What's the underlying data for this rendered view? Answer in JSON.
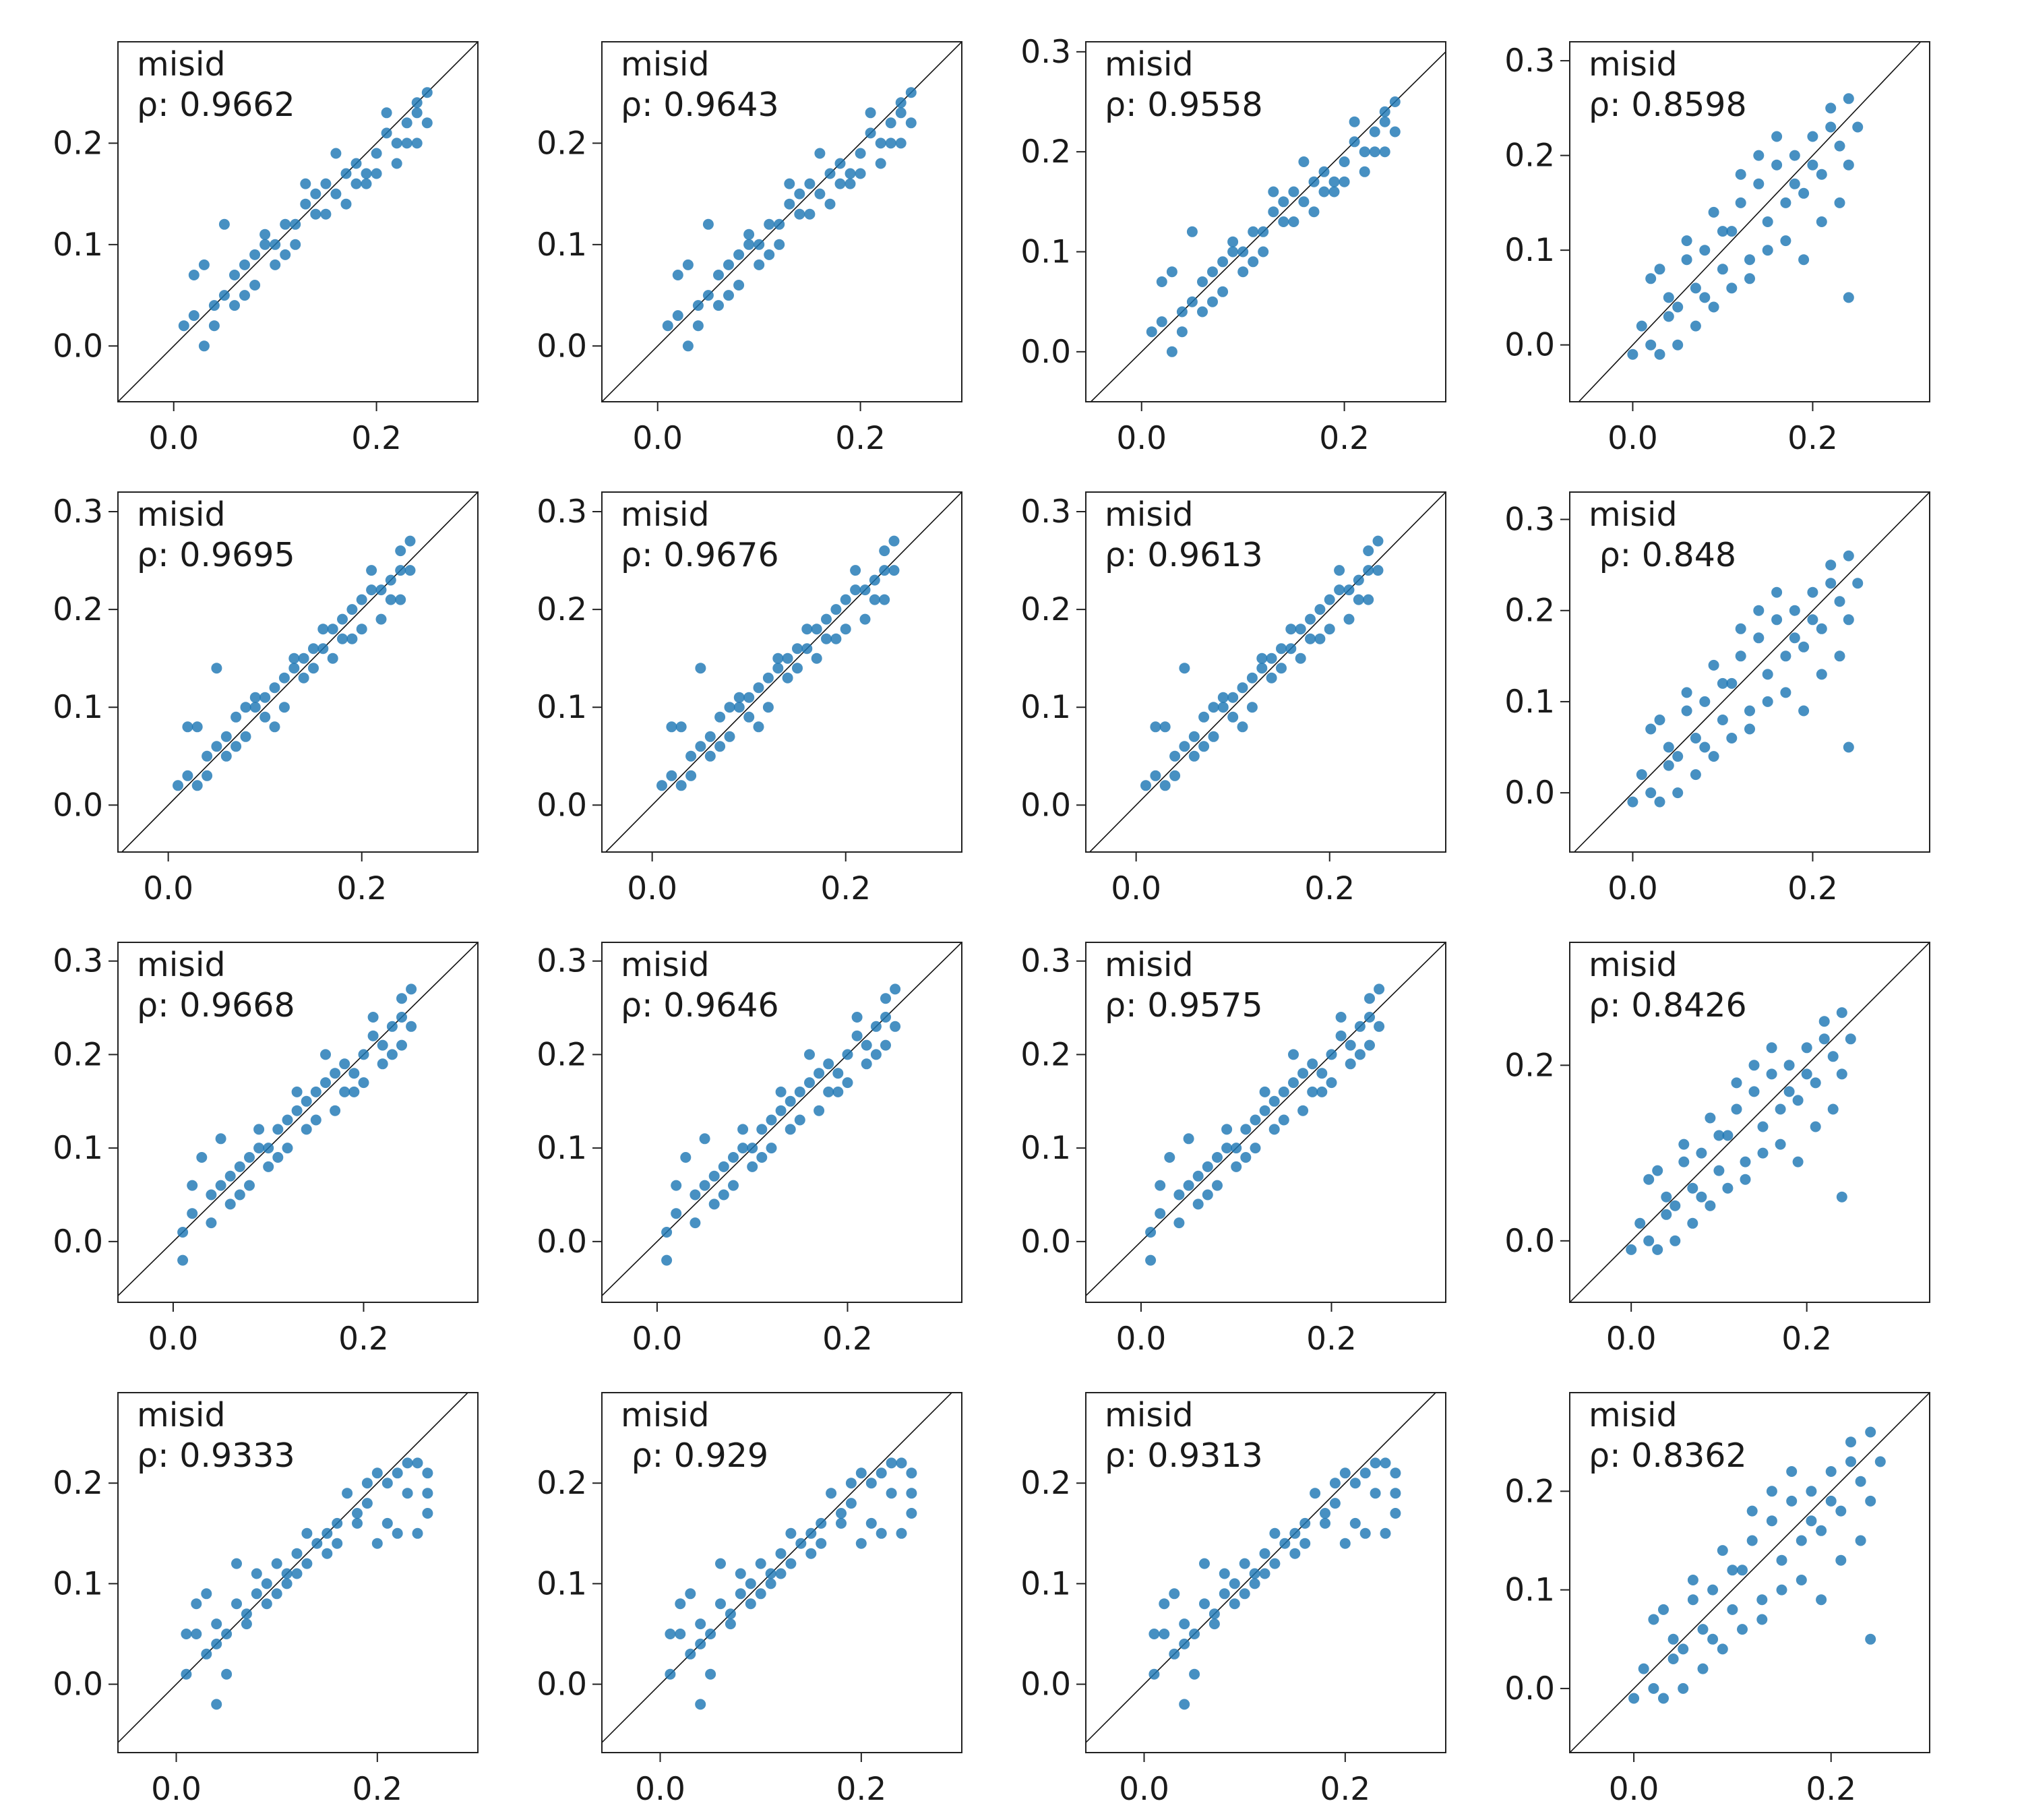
{
  "colors": {
    "point": "#1f77b4",
    "axes": "#222222",
    "background": "#ffffff"
  },
  "chart_data": [
    {
      "type": "scatter",
      "row": 0,
      "col": 0,
      "label": "misid",
      "rho": "ρ: 0.9662",
      "xlim": [
        -0.055,
        0.3
      ],
      "ylim": [
        -0.055,
        0.3
      ],
      "xticks": [
        "0.0",
        "0.2"
      ],
      "yticks": [
        "0.0",
        "0.1",
        "0.2"
      ]
    },
    {
      "type": "scatter",
      "row": 0,
      "col": 1,
      "label": "misid",
      "rho": "ρ: 0.9643",
      "xlim": [
        -0.055,
        0.3
      ],
      "ylim": [
        -0.055,
        0.3
      ],
      "xticks": [
        "0.0",
        "0.2"
      ],
      "yticks": [
        "0.0",
        "0.1",
        "0.2"
      ]
    },
    {
      "type": "scatter",
      "row": 0,
      "col": 2,
      "label": "misid",
      "rho": "ρ: 0.9558",
      "xlim": [
        -0.055,
        0.3
      ],
      "ylim": [
        -0.05,
        0.31
      ],
      "xticks": [
        "0.0",
        "0.2"
      ],
      "yticks": [
        "0.0",
        "0.1",
        "0.2",
        "0.3"
      ]
    },
    {
      "type": "scatter",
      "row": 0,
      "col": 3,
      "label": "misid",
      "rho": "ρ: 0.8598",
      "xlim": [
        -0.07,
        0.33
      ],
      "ylim": [
        -0.06,
        0.32
      ],
      "xticks": [
        "0.0",
        "0.2"
      ],
      "yticks": [
        "0.0",
        "0.1",
        "0.2",
        "0.3"
      ]
    },
    {
      "type": "scatter",
      "row": 1,
      "col": 0,
      "label": "misid",
      "rho": "ρ: 0.9695",
      "xlim": [
        -0.052,
        0.32
      ],
      "ylim": [
        -0.048,
        0.32
      ],
      "xticks": [
        "0.0",
        "0.2"
      ],
      "yticks": [
        "0.0",
        "0.1",
        "0.2",
        "0.3"
      ]
    },
    {
      "type": "scatter",
      "row": 1,
      "col": 1,
      "label": "misid",
      "rho": "ρ: 0.9676",
      "xlim": [
        -0.052,
        0.32
      ],
      "ylim": [
        -0.048,
        0.32
      ],
      "xticks": [
        "0.0",
        "0.2"
      ],
      "yticks": [
        "0.0",
        "0.1",
        "0.2",
        "0.3"
      ]
    },
    {
      "type": "scatter",
      "row": 1,
      "col": 2,
      "label": "misid",
      "rho": "ρ: 0.9613",
      "xlim": [
        -0.052,
        0.32
      ],
      "ylim": [
        -0.048,
        0.32
      ],
      "xticks": [
        "0.0",
        "0.2"
      ],
      "yticks": [
        "0.0",
        "0.1",
        "0.2",
        "0.3"
      ]
    },
    {
      "type": "scatter",
      "row": 1,
      "col": 3,
      "label": "misid",
      "rho": " ρ: 0.848",
      "xlim": [
        -0.07,
        0.33
      ],
      "ylim": [
        -0.065,
        0.33
      ],
      "xticks": [
        "0.0",
        "0.2"
      ],
      "yticks": [
        "0.0",
        "0.1",
        "0.2",
        "0.3"
      ]
    },
    {
      "type": "scatter",
      "row": 2,
      "col": 0,
      "label": "misid",
      "rho": "ρ: 0.9668",
      "xlim": [
        -0.058,
        0.32
      ],
      "ylim": [
        -0.065,
        0.32
      ],
      "xticks": [
        "0.0",
        "0.2"
      ],
      "yticks": [
        "0.0",
        "0.1",
        "0.2",
        "0.3"
      ]
    },
    {
      "type": "scatter",
      "row": 2,
      "col": 1,
      "label": "misid",
      "rho": "ρ: 0.9646",
      "xlim": [
        -0.058,
        0.32
      ],
      "ylim": [
        -0.065,
        0.32
      ],
      "xticks": [
        "0.0",
        "0.2"
      ],
      "yticks": [
        "0.0",
        "0.1",
        "0.2",
        "0.3"
      ]
    },
    {
      "type": "scatter",
      "row": 2,
      "col": 2,
      "label": "misid",
      "rho": "ρ: 0.9575",
      "xlim": [
        -0.058,
        0.32
      ],
      "ylim": [
        -0.065,
        0.32
      ],
      "xticks": [
        "0.0",
        "0.2"
      ],
      "yticks": [
        "0.0",
        "0.1",
        "0.2",
        "0.3"
      ]
    },
    {
      "type": "scatter",
      "row": 2,
      "col": 3,
      "label": "misid",
      "rho": "ρ: 0.8426",
      "xlim": [
        -0.07,
        0.34
      ],
      "ylim": [
        -0.07,
        0.34
      ],
      "xticks": [
        "0.0",
        "0.2"
      ],
      "yticks": [
        "0.0",
        "0.2"
      ]
    },
    {
      "type": "scatter",
      "row": 3,
      "col": 0,
      "label": "misid",
      "rho": "ρ: 0.9333",
      "xlim": [
        -0.058,
        0.3
      ],
      "ylim": [
        -0.068,
        0.29
      ],
      "xticks": [
        "0.0",
        "0.2"
      ],
      "yticks": [
        "0.0",
        "0.1",
        "0.2"
      ]
    },
    {
      "type": "scatter",
      "row": 3,
      "col": 1,
      "label": "misid",
      "rho": " ρ: 0.929",
      "xlim": [
        -0.058,
        0.3
      ],
      "ylim": [
        -0.068,
        0.29
      ],
      "xticks": [
        "0.0",
        "0.2"
      ],
      "yticks": [
        "0.0",
        "0.1",
        "0.2"
      ]
    },
    {
      "type": "scatter",
      "row": 3,
      "col": 2,
      "label": "misid",
      "rho": "ρ: 0.9313",
      "xlim": [
        -0.058,
        0.3
      ],
      "ylim": [
        -0.068,
        0.29
      ],
      "xticks": [
        "0.0",
        "0.2"
      ],
      "yticks": [
        "0.0",
        "0.1",
        "0.2"
      ]
    },
    {
      "type": "scatter",
      "row": 3,
      "col": 3,
      "label": "misid",
      "rho": "ρ: 0.8362",
      "xlim": [
        -0.065,
        0.3
      ],
      "ylim": [
        -0.065,
        0.3
      ],
      "xticks": [
        "0.0",
        "0.2"
      ],
      "yticks": [
        "0.0",
        "0.1",
        "0.2"
      ]
    }
  ],
  "points": {
    "row0": [
      [
        0.01,
        0.02
      ],
      [
        0.02,
        0.03
      ],
      [
        0.02,
        0.07
      ],
      [
        0.03,
        0.08
      ],
      [
        0.04,
        0.04
      ],
      [
        0.05,
        0.05
      ],
      [
        0.05,
        0.12
      ],
      [
        0.06,
        0.07
      ],
      [
        0.07,
        0.08
      ],
      [
        0.08,
        0.09
      ],
      [
        0.09,
        0.1
      ],
      [
        0.1,
        0.1
      ],
      [
        0.11,
        0.12
      ],
      [
        0.12,
        0.12
      ],
      [
        0.13,
        0.14
      ],
      [
        0.14,
        0.15
      ],
      [
        0.15,
        0.16
      ],
      [
        0.16,
        0.15
      ],
      [
        0.17,
        0.17
      ],
      [
        0.18,
        0.18
      ],
      [
        0.19,
        0.17
      ],
      [
        0.2,
        0.19
      ],
      [
        0.21,
        0.21
      ],
      [
        0.22,
        0.2
      ],
      [
        0.23,
        0.22
      ],
      [
        0.24,
        0.24
      ],
      [
        0.25,
        0.25
      ],
      [
        0.24,
        0.2
      ],
      [
        0.22,
        0.18
      ],
      [
        0.19,
        0.16
      ],
      [
        0.15,
        0.13
      ],
      [
        0.12,
        0.1
      ],
      [
        0.08,
        0.06
      ],
      [
        0.04,
        0.02
      ],
      [
        0.03,
        0.0
      ],
      [
        0.06,
        0.04
      ],
      [
        0.1,
        0.08
      ],
      [
        0.14,
        0.13
      ],
      [
        0.18,
        0.16
      ],
      [
        0.2,
        0.17
      ],
      [
        0.23,
        0.2
      ],
      [
        0.25,
        0.22
      ],
      [
        0.13,
        0.16
      ],
      [
        0.09,
        0.11
      ],
      [
        0.16,
        0.19
      ],
      [
        0.21,
        0.23
      ],
      [
        0.07,
        0.05
      ],
      [
        0.11,
        0.09
      ],
      [
        0.17,
        0.14
      ],
      [
        0.24,
        0.23
      ]
    ],
    "row1": [
      [
        0.01,
        0.02
      ],
      [
        0.02,
        0.03
      ],
      [
        0.02,
        0.08
      ],
      [
        0.03,
        0.08
      ],
      [
        0.04,
        0.05
      ],
      [
        0.05,
        0.06
      ],
      [
        0.05,
        0.14
      ],
      [
        0.06,
        0.07
      ],
      [
        0.07,
        0.09
      ],
      [
        0.08,
        0.1
      ],
      [
        0.09,
        0.1
      ],
      [
        0.1,
        0.11
      ],
      [
        0.11,
        0.12
      ],
      [
        0.12,
        0.13
      ],
      [
        0.13,
        0.14
      ],
      [
        0.14,
        0.15
      ],
      [
        0.15,
        0.16
      ],
      [
        0.16,
        0.16
      ],
      [
        0.17,
        0.18
      ],
      [
        0.18,
        0.19
      ],
      [
        0.19,
        0.2
      ],
      [
        0.2,
        0.21
      ],
      [
        0.21,
        0.22
      ],
      [
        0.22,
        0.22
      ],
      [
        0.23,
        0.23
      ],
      [
        0.24,
        0.26
      ],
      [
        0.25,
        0.27
      ],
      [
        0.24,
        0.21
      ],
      [
        0.22,
        0.19
      ],
      [
        0.19,
        0.17
      ],
      [
        0.15,
        0.14
      ],
      [
        0.12,
        0.1
      ],
      [
        0.08,
        0.07
      ],
      [
        0.04,
        0.03
      ],
      [
        0.03,
        0.02
      ],
      [
        0.06,
        0.05
      ],
      [
        0.1,
        0.09
      ],
      [
        0.14,
        0.13
      ],
      [
        0.18,
        0.17
      ],
      [
        0.2,
        0.18
      ],
      [
        0.23,
        0.21
      ],
      [
        0.25,
        0.24
      ],
      [
        0.13,
        0.15
      ],
      [
        0.09,
        0.11
      ],
      [
        0.16,
        0.18
      ],
      [
        0.21,
        0.24
      ],
      [
        0.07,
        0.06
      ],
      [
        0.11,
        0.08
      ],
      [
        0.17,
        0.15
      ],
      [
        0.24,
        0.24
      ]
    ],
    "row2": [
      [
        0.01,
        0.01
      ],
      [
        0.02,
        0.03
      ],
      [
        0.02,
        0.06
      ],
      [
        0.03,
        0.09
      ],
      [
        0.04,
        0.05
      ],
      [
        0.05,
        0.06
      ],
      [
        0.05,
        0.11
      ],
      [
        0.06,
        0.07
      ],
      [
        0.07,
        0.08
      ],
      [
        0.08,
        0.09
      ],
      [
        0.09,
        0.1
      ],
      [
        0.1,
        0.1
      ],
      [
        0.11,
        0.12
      ],
      [
        0.12,
        0.13
      ],
      [
        0.13,
        0.14
      ],
      [
        0.14,
        0.15
      ],
      [
        0.15,
        0.16
      ],
      [
        0.16,
        0.17
      ],
      [
        0.17,
        0.18
      ],
      [
        0.18,
        0.19
      ],
      [
        0.19,
        0.18
      ],
      [
        0.2,
        0.2
      ],
      [
        0.21,
        0.22
      ],
      [
        0.22,
        0.21
      ],
      [
        0.23,
        0.23
      ],
      [
        0.24,
        0.26
      ],
      [
        0.25,
        0.27
      ],
      [
        0.24,
        0.21
      ],
      [
        0.22,
        0.19
      ],
      [
        0.19,
        0.16
      ],
      [
        0.15,
        0.13
      ],
      [
        0.12,
        0.1
      ],
      [
        0.08,
        0.06
      ],
      [
        0.04,
        0.02
      ],
      [
        0.01,
        -0.02
      ],
      [
        0.06,
        0.04
      ],
      [
        0.1,
        0.08
      ],
      [
        0.14,
        0.12
      ],
      [
        0.18,
        0.16
      ],
      [
        0.2,
        0.17
      ],
      [
        0.23,
        0.2
      ],
      [
        0.25,
        0.23
      ],
      [
        0.13,
        0.16
      ],
      [
        0.09,
        0.12
      ],
      [
        0.16,
        0.2
      ],
      [
        0.21,
        0.24
      ],
      [
        0.07,
        0.05
      ],
      [
        0.11,
        0.09
      ],
      [
        0.17,
        0.14
      ],
      [
        0.24,
        0.24
      ]
    ],
    "row3": [
      [
        0.01,
        0.05
      ],
      [
        0.01,
        0.01
      ],
      [
        0.02,
        0.05
      ],
      [
        0.02,
        0.08
      ],
      [
        0.03,
        0.09
      ],
      [
        0.04,
        -0.02
      ],
      [
        0.04,
        0.06
      ],
      [
        0.05,
        0.05
      ],
      [
        0.05,
        0.01
      ],
      [
        0.06,
        0.12
      ],
      [
        0.06,
        0.08
      ],
      [
        0.07,
        0.07
      ],
      [
        0.08,
        0.09
      ],
      [
        0.09,
        0.1
      ],
      [
        0.1,
        0.09
      ],
      [
        0.11,
        0.11
      ],
      [
        0.12,
        0.13
      ],
      [
        0.13,
        0.15
      ],
      [
        0.14,
        0.14
      ],
      [
        0.15,
        0.15
      ],
      [
        0.16,
        0.16
      ],
      [
        0.17,
        0.19
      ],
      [
        0.18,
        0.17
      ],
      [
        0.19,
        0.2
      ],
      [
        0.2,
        0.21
      ],
      [
        0.21,
        0.2
      ],
      [
        0.22,
        0.21
      ],
      [
        0.23,
        0.22
      ],
      [
        0.24,
        0.22
      ],
      [
        0.25,
        0.21
      ],
      [
        0.25,
        0.17
      ],
      [
        0.24,
        0.15
      ],
      [
        0.22,
        0.15
      ],
      [
        0.2,
        0.14
      ],
      [
        0.18,
        0.16
      ],
      [
        0.15,
        0.13
      ],
      [
        0.12,
        0.11
      ],
      [
        0.09,
        0.08
      ],
      [
        0.07,
        0.06
      ],
      [
        0.04,
        0.04
      ],
      [
        0.03,
        0.03
      ],
      [
        0.1,
        0.12
      ],
      [
        0.13,
        0.12
      ],
      [
        0.16,
        0.14
      ],
      [
        0.19,
        0.18
      ],
      [
        0.21,
        0.16
      ],
      [
        0.23,
        0.19
      ],
      [
        0.25,
        0.19
      ],
      [
        0.08,
        0.11
      ],
      [
        0.11,
        0.1
      ]
    ],
    "col3": [
      [
        0.0,
        -0.01
      ],
      [
        0.01,
        0.02
      ],
      [
        0.02,
        0.07
      ],
      [
        0.02,
        0.0
      ],
      [
        0.03,
        0.08
      ],
      [
        0.04,
        0.03
      ],
      [
        0.04,
        0.05
      ],
      [
        0.05,
        0.04
      ],
      [
        0.06,
        0.11
      ],
      [
        0.06,
        0.09
      ],
      [
        0.07,
        0.06
      ],
      [
        0.08,
        0.1
      ],
      [
        0.09,
        0.14
      ],
      [
        0.1,
        0.08
      ],
      [
        0.11,
        0.12
      ],
      [
        0.12,
        0.15
      ],
      [
        0.13,
        0.09
      ],
      [
        0.14,
        0.17
      ],
      [
        0.15,
        0.13
      ],
      [
        0.16,
        0.19
      ],
      [
        0.17,
        0.15
      ],
      [
        0.18,
        0.2
      ],
      [
        0.19,
        0.16
      ],
      [
        0.2,
        0.22
      ],
      [
        0.21,
        0.18
      ],
      [
        0.22,
        0.25
      ],
      [
        0.23,
        0.21
      ],
      [
        0.24,
        0.26
      ],
      [
        0.24,
        0.19
      ],
      [
        0.25,
        0.23
      ],
      [
        0.24,
        0.05
      ],
      [
        0.23,
        0.15
      ],
      [
        0.21,
        0.13
      ],
      [
        0.19,
        0.09
      ],
      [
        0.17,
        0.11
      ],
      [
        0.15,
        0.1
      ],
      [
        0.13,
        0.07
      ],
      [
        0.11,
        0.06
      ],
      [
        0.09,
        0.04
      ],
      [
        0.07,
        0.02
      ],
      [
        0.05,
        0.0
      ],
      [
        0.03,
        -0.01
      ],
      [
        0.12,
        0.18
      ],
      [
        0.14,
        0.2
      ],
      [
        0.16,
        0.22
      ],
      [
        0.18,
        0.17
      ],
      [
        0.2,
        0.19
      ],
      [
        0.22,
        0.23
      ],
      [
        0.08,
        0.05
      ],
      [
        0.1,
        0.12
      ]
    ]
  }
}
